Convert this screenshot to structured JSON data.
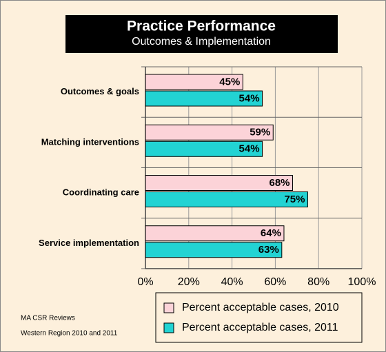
{
  "chart_data": {
    "type": "hbar",
    "title": "Practice Performance",
    "subtitle": "Outcomes & Implementation",
    "categories": [
      "Outcomes & goals",
      "Matching interventions",
      "Coordinating care",
      "Service implementation"
    ],
    "series": [
      {
        "name": "Percent acceptable cases, 2010",
        "color": "#fcd3d8",
        "values": [
          45,
          59,
          68,
          64
        ],
        "value_labels": [
          "45%",
          "59%",
          "68%",
          "64%"
        ]
      },
      {
        "name": "Percent acceptable cases, 2011",
        "color": "#22d3d3",
        "values": [
          54,
          54,
          75,
          63
        ],
        "value_labels": [
          "54%",
          "54%",
          "75%",
          "63%"
        ]
      }
    ],
    "xlim": [
      0,
      100
    ],
    "xticks": [
      {
        "value": 0,
        "label": "0%"
      },
      {
        "value": 20,
        "label": "20%"
      },
      {
        "value": 40,
        "label": "40%"
      },
      {
        "value": 60,
        "label": "60%"
      },
      {
        "value": 80,
        "label": "80%"
      },
      {
        "value": 100,
        "label": "100%"
      }
    ],
    "grid": true,
    "notes": [
      "MA CSR Reviews",
      "Western Region 2010 and 2011"
    ]
  }
}
